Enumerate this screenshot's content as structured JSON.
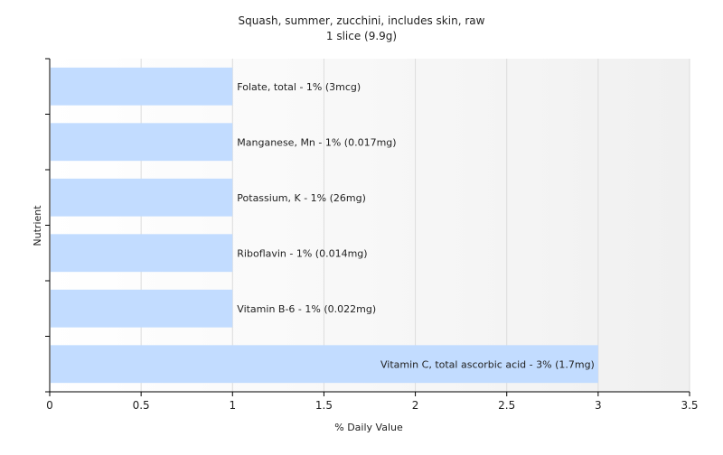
{
  "chart_data": {
    "type": "bar",
    "orientation": "horizontal",
    "title": "Squash, summer, zucchini, includes skin, raw",
    "subtitle": "1 slice (9.9g)",
    "xlabel": "% Daily Value",
    "ylabel": "Nutrient",
    "xlim": [
      0,
      3.5
    ],
    "xticks": [
      "0",
      "0.5",
      "1",
      "1.5",
      "2",
      "2.5",
      "3",
      "3.5"
    ],
    "grid": true,
    "bar_color": "#c2dcff",
    "categories": [
      "Folate, total",
      "Manganese, Mn",
      "Potassium, K",
      "Riboflavin",
      "Vitamin B-6",
      "Vitamin C, total ascorbic acid"
    ],
    "values": [
      1,
      1,
      1,
      1,
      1,
      3
    ],
    "labels": [
      "Folate, total - 1% (3mcg)",
      "Manganese, Mn - 1% (0.017mg)",
      "Potassium, K - 1% (26mg)",
      "Riboflavin - 1% (0.014mg)",
      "Vitamin B-6 - 1% (0.022mg)",
      "Vitamin C, total ascorbic acid - 3% (1.7mg)"
    ]
  }
}
